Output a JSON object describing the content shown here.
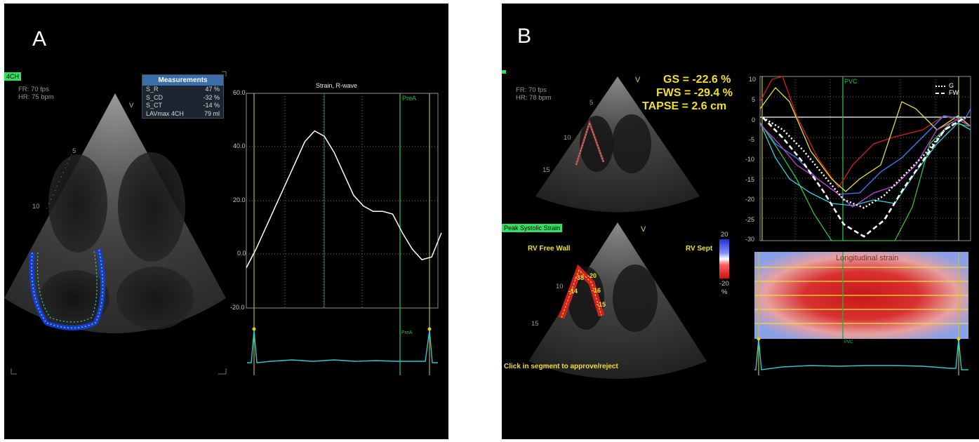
{
  "panel_a": {
    "letter": "A",
    "view_tag": "4CH",
    "fr": "FR: 70 fps",
    "hr": "HR: 75 bpm",
    "v_marker": "V",
    "depth_5": "5",
    "depth_10": "10",
    "measurements": {
      "title": "Measurements",
      "rows": [
        {
          "label": "S_R",
          "value": "47 %"
        },
        {
          "label": "S_CD",
          "value": "-32 %"
        },
        {
          "label": "S_CT",
          "value": "-14 %"
        },
        {
          "label": "LAVmax 4CH",
          "value": "79 ml"
        }
      ]
    },
    "strain_chart": {
      "title": "Strain, R-wave",
      "y_ticks": [
        "60.0",
        "40.0",
        "20.0",
        "0.0",
        "-20.0"
      ],
      "marker_prea": "PreA",
      "ecg_prea": "PreA"
    }
  },
  "panel_b": {
    "letter": "B",
    "fr": "FR: 70 fps",
    "hr": "HR: 78 bpm",
    "v_marker_top": "V",
    "v_marker_bottom": "V",
    "depth_5": "5",
    "depth_10": "10",
    "depth_15": "15",
    "depth_10b": "10",
    "depth_15b": "15",
    "gs": "GS = -22.6 %",
    "fws": "FWS = -29.4 %",
    "tapse": "TAPSE = 2.6 cm",
    "peak_tag": "Peak Systolic Strain",
    "rv_free_wall": "RV Free Wall",
    "rv_sept": "RV Sept",
    "segment_values": [
      "-38",
      "-20",
      "-14",
      "-16",
      "-15"
    ],
    "color_scale": {
      "top": "20",
      "bottom": "-20",
      "unit": "%"
    },
    "instruction": "Click in segment to approve/reject",
    "curves_chart": {
      "y_ticks": [
        "10",
        "5",
        "0",
        "-5",
        "-10",
        "-15",
        "-20",
        "-25",
        "-30"
      ],
      "marker": "PVC",
      "legend": [
        {
          "name": "G",
          "style": "dotted"
        },
        {
          "name": "FW",
          "style": "dashed"
        }
      ]
    },
    "mmode_title": "Longitudinal strain",
    "mmode_marker": "PVC"
  },
  "colors": {
    "ecg": "#2ec8d0",
    "marker_green": "#22c040",
    "marker_yellow": "#d8d020",
    "title_yellow": "#f0e02c"
  },
  "chart_data": [
    {
      "type": "line",
      "title": "Strain, R-wave",
      "xlabel": "",
      "ylabel": "",
      "ylim": [
        -20,
        60
      ],
      "grid": true,
      "series": [
        {
          "x": [
            0,
            5,
            10,
            15,
            20,
            25,
            30,
            35,
            40,
            45,
            50,
            55,
            60,
            65,
            70,
            75,
            80,
            85,
            90,
            95,
            100
          ],
          "values": [
            -5,
            2,
            10,
            18,
            26,
            34,
            42,
            46,
            44,
            38,
            30,
            22,
            18,
            16,
            16,
            15,
            8,
            2,
            -2,
            -1,
            8
          ]
        }
      ]
    },
    {
      "type": "line",
      "title": "",
      "ylim": [
        -30,
        10
      ],
      "grid": true,
      "series": [
        {
          "name": "G",
          "x": [
            0,
            10,
            20,
            30,
            40,
            50,
            60,
            70,
            80,
            90,
            100
          ],
          "values": [
            0,
            -3,
            -8,
            -14,
            -20,
            -22,
            -19,
            -14,
            -9,
            -3,
            0
          ]
        },
        {
          "name": "FW",
          "x": [
            0,
            10,
            20,
            30,
            40,
            50,
            60,
            70,
            80,
            90,
            100
          ],
          "values": [
            0,
            -5,
            -11,
            -18,
            -26,
            -29,
            -25,
            -17,
            -10,
            -3,
            0
          ]
        }
      ]
    }
  ]
}
